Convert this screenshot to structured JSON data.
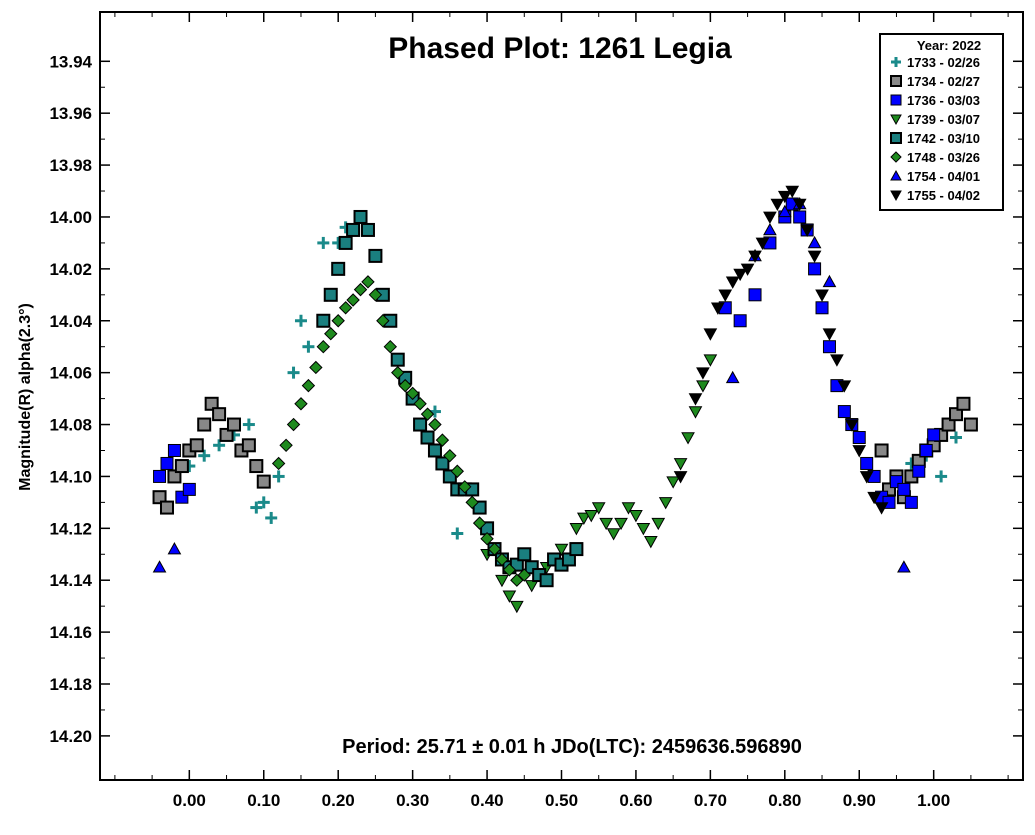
{
  "chart_data": {
    "type": "scatter",
    "title": "Phased Plot: 1261 Legia",
    "ylabel": "Magnitude(R) alpha(2.3°)",
    "xlabel": "",
    "period_note": "Period: 25.71 ± 0.01 h  JDo(LTC): 2459636.596890",
    "x_ticks": [
      "0.00",
      "0.10",
      "0.20",
      "0.30",
      "0.40",
      "0.50",
      "0.60",
      "0.70",
      "0.80",
      "0.90",
      "1.00"
    ],
    "y_ticks": [
      "13.94",
      "13.96",
      "13.98",
      "14.00",
      "14.02",
      "14.04",
      "14.06",
      "14.08",
      "14.10",
      "14.12",
      "14.14",
      "14.16",
      "14.18",
      "14.20"
    ],
    "xlim": [
      -0.12,
      1.12
    ],
    "ylim": [
      14.217,
      13.921
    ],
    "y_inverted": true,
    "grid": false,
    "legend_title": "Year: 2022",
    "legend_position": "top-right",
    "series": [
      {
        "name": "1733 - 02/26",
        "marker": "plus",
        "color": "#1a8a8a",
        "x": [
          -0.02,
          0.0,
          0.02,
          0.04,
          0.06,
          0.08,
          0.09,
          0.1,
          0.11,
          0.12,
          0.14,
          0.15,
          0.16,
          0.18,
          0.2,
          0.21,
          0.32,
          0.33,
          0.36,
          0.97,
          0.99,
          1.01,
          1.03
        ],
        "y": [
          14.1,
          14.096,
          14.092,
          14.088,
          14.084,
          14.08,
          14.112,
          14.11,
          14.116,
          14.1,
          14.06,
          14.04,
          14.05,
          14.01,
          14.01,
          14.004,
          14.085,
          14.075,
          14.122,
          14.095,
          14.092,
          14.1,
          14.085
        ]
      },
      {
        "name": "1734 - 02/27",
        "marker": "square",
        "color": "#888888",
        "x": [
          -0.04,
          -0.03,
          -0.02,
          -0.01,
          0.0,
          0.01,
          0.02,
          0.03,
          0.04,
          0.05,
          0.06,
          0.07,
          0.08,
          0.09,
          0.1,
          0.93,
          0.94,
          0.95,
          0.96,
          0.97,
          0.98,
          0.99,
          1.0,
          1.01,
          1.02,
          1.03,
          1.04,
          1.05
        ],
        "y": [
          14.108,
          14.112,
          14.1,
          14.096,
          14.09,
          14.088,
          14.08,
          14.072,
          14.076,
          14.084,
          14.08,
          14.09,
          14.088,
          14.096,
          14.102,
          14.09,
          14.105,
          14.1,
          14.108,
          14.1,
          14.094,
          14.09,
          14.088,
          14.084,
          14.08,
          14.076,
          14.072,
          14.08
        ]
      },
      {
        "name": "1736 - 03/03",
        "marker": "square",
        "color": "#0000ff",
        "x": [
          -0.04,
          -0.03,
          -0.02,
          -0.01,
          0.0,
          0.72,
          0.74,
          0.76,
          0.78,
          0.8,
          0.81,
          0.82,
          0.83,
          0.84,
          0.85,
          0.86,
          0.87,
          0.88,
          0.89,
          0.9,
          0.91,
          0.92,
          0.93,
          0.94,
          0.95,
          0.96,
          0.97,
          0.98,
          0.99,
          1.0
        ],
        "y": [
          14.1,
          14.095,
          14.09,
          14.108,
          14.105,
          14.035,
          14.04,
          14.03,
          14.01,
          14.0,
          13.995,
          14.0,
          14.005,
          14.02,
          14.035,
          14.05,
          14.065,
          14.075,
          14.08,
          14.085,
          14.095,
          14.1,
          14.108,
          14.11,
          14.102,
          14.105,
          14.11,
          14.098,
          14.09,
          14.084
        ]
      },
      {
        "name": "1739 - 03/07",
        "marker": "triangle-down",
        "color": "#1e8a1e",
        "x": [
          0.4,
          0.42,
          0.43,
          0.44,
          0.46,
          0.48,
          0.5,
          0.52,
          0.53,
          0.54,
          0.55,
          0.56,
          0.57,
          0.58,
          0.59,
          0.6,
          0.61,
          0.62,
          0.63,
          0.64,
          0.65,
          0.66,
          0.67,
          0.68,
          0.69,
          0.7
        ],
        "y": [
          14.13,
          14.14,
          14.146,
          14.15,
          14.142,
          14.135,
          14.128,
          14.12,
          14.116,
          14.115,
          14.112,
          14.118,
          14.122,
          14.118,
          14.112,
          14.115,
          14.12,
          14.125,
          14.118,
          14.11,
          14.102,
          14.095,
          14.085,
          14.075,
          14.065,
          14.055
        ]
      },
      {
        "name": "1742 - 03/10",
        "marker": "square",
        "color": "#1a7f7f",
        "x": [
          0.18,
          0.19,
          0.2,
          0.21,
          0.22,
          0.23,
          0.24,
          0.25,
          0.26,
          0.27,
          0.28,
          0.29,
          0.3,
          0.31,
          0.32,
          0.33,
          0.34,
          0.35,
          0.36,
          0.37,
          0.38,
          0.39,
          0.4,
          0.41,
          0.42,
          0.43,
          0.44,
          0.45,
          0.46,
          0.47,
          0.48,
          0.49,
          0.5,
          0.51,
          0.52
        ],
        "y": [
          14.04,
          14.03,
          14.02,
          14.01,
          14.005,
          14.0,
          14.005,
          14.015,
          14.03,
          14.04,
          14.055,
          14.062,
          14.07,
          14.08,
          14.085,
          14.09,
          14.095,
          14.1,
          14.105,
          14.105,
          14.105,
          14.112,
          14.12,
          14.128,
          14.132,
          14.135,
          14.134,
          14.13,
          14.135,
          14.138,
          14.14,
          14.132,
          14.134,
          14.132,
          14.128
        ]
      },
      {
        "name": "1748 - 03/26",
        "marker": "diamond",
        "color": "#1e8a1e",
        "x": [
          0.12,
          0.13,
          0.14,
          0.15,
          0.16,
          0.17,
          0.18,
          0.19,
          0.2,
          0.21,
          0.22,
          0.23,
          0.24,
          0.25,
          0.26,
          0.27,
          0.28,
          0.29,
          0.3,
          0.31,
          0.32,
          0.33,
          0.34,
          0.35,
          0.36,
          0.37,
          0.38,
          0.39,
          0.4,
          0.41,
          0.42,
          0.43,
          0.44,
          0.45
        ],
        "y": [
          14.095,
          14.088,
          14.08,
          14.072,
          14.065,
          14.058,
          14.05,
          14.045,
          14.04,
          14.035,
          14.032,
          14.028,
          14.025,
          14.03,
          14.04,
          14.05,
          14.06,
          14.065,
          14.068,
          14.072,
          14.076,
          14.08,
          14.086,
          14.092,
          14.098,
          14.104,
          14.11,
          14.118,
          14.124,
          14.128,
          14.132,
          14.136,
          14.14,
          14.138
        ]
      },
      {
        "name": "1754 - 04/01",
        "marker": "triangle-up",
        "color": "#0000ff",
        "x": [
          -0.04,
          -0.02,
          0.73,
          0.76,
          0.78,
          0.8,
          0.82,
          0.84,
          0.86,
          0.96
        ],
        "y": [
          14.135,
          14.128,
          14.062,
          14.015,
          14.005,
          13.998,
          13.995,
          14.01,
          14.025,
          14.135
        ]
      },
      {
        "name": "1755 - 04/02",
        "marker": "triangle-down",
        "color": "#000000",
        "x": [
          0.66,
          0.68,
          0.69,
          0.7,
          0.71,
          0.72,
          0.73,
          0.74,
          0.75,
          0.76,
          0.77,
          0.78,
          0.79,
          0.8,
          0.81,
          0.82,
          0.83,
          0.84,
          0.85,
          0.86,
          0.87,
          0.88,
          0.89,
          0.9,
          0.91,
          0.92,
          0.93
        ],
        "y": [
          14.1,
          14.07,
          14.06,
          14.045,
          14.035,
          14.03,
          14.025,
          14.022,
          14.02,
          14.015,
          14.01,
          14.0,
          13.995,
          13.992,
          13.99,
          13.995,
          14.005,
          14.015,
          14.03,
          14.045,
          14.055,
          14.065,
          14.08,
          14.09,
          14.1,
          14.108,
          14.112
        ]
      }
    ]
  },
  "colors": {
    "background": "#ffffff",
    "axis": "#000000",
    "legend_border": "#000000"
  }
}
